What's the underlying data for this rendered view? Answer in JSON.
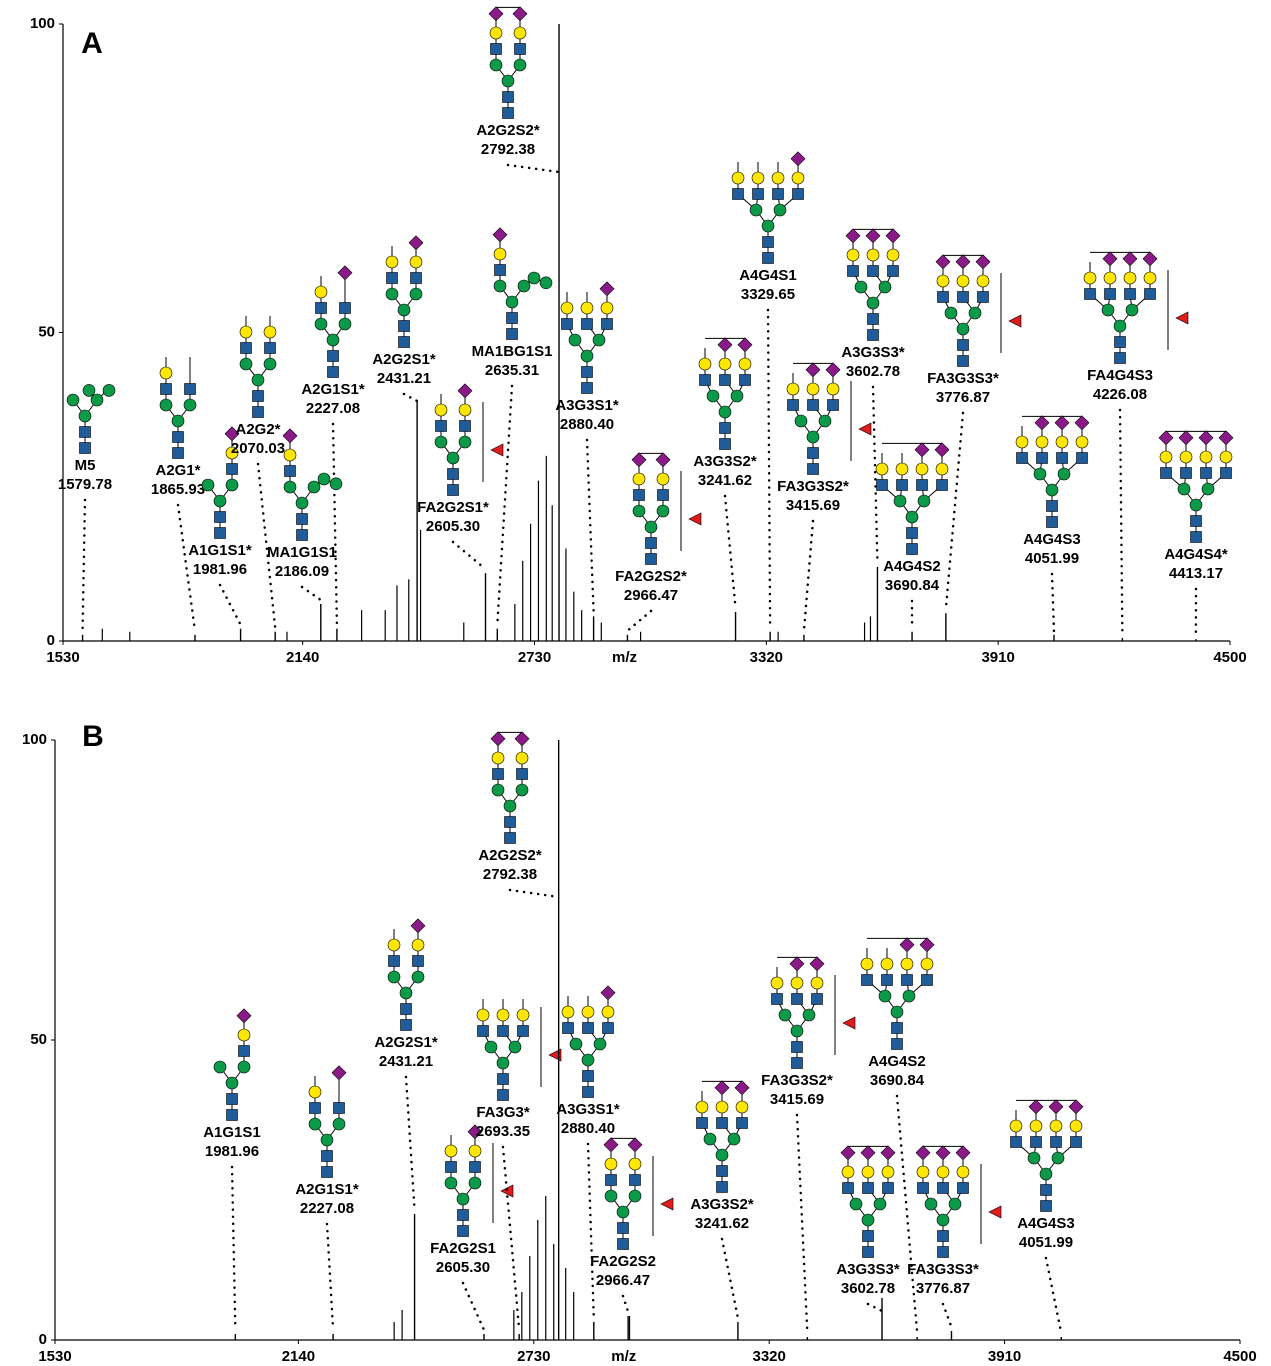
{
  "chart_data": [
    {
      "type": "spectrum",
      "panel_label": "A",
      "x_label": "m/z",
      "color": "#000000",
      "xlim": [
        1530,
        4500
      ],
      "xticks": [
        1530,
        2140,
        2730,
        3320,
        3910,
        4500
      ],
      "ylim": [
        0,
        100
      ],
      "yticks": [
        0,
        50,
        100
      ],
      "annotated_peaks": {
        "names": [
          "M5",
          "A2G1*",
          "A1G1S1*",
          "A2G2*",
          "A2G1S1*",
          "MA1G1S1",
          "A2G2S1*",
          "FA2G2S1*",
          "MA1BG1S1",
          "A2G2S2*",
          "A3G3S1*",
          "FA2G2S2*",
          "A3G3S2*",
          "A4G4S1",
          "FA3G3S2*",
          "A3G3S3*",
          "A4G4S2",
          "FA3G3S3*",
          "A4G4S3",
          "FA4G4S3",
          "A4G4S4*"
        ],
        "x": [
          1579.78,
          1865.93,
          1981.96,
          2070.03,
          2227.08,
          2186.09,
          2431.21,
          2605.3,
          2635.31,
          2792.38,
          2880.4,
          2966.47,
          3241.62,
          3329.65,
          3415.69,
          3602.78,
          3690.84,
          3776.87,
          4051.99,
          4226.08,
          4413.17
        ],
        "x_labels": [
          "1579.78",
          "1865.93",
          "1981.96",
          "2070.03",
          "2227.08",
          "2186.09",
          "2431.21",
          "2605.30",
          "2635.31",
          "2792.38",
          "2880.40",
          "2966.47",
          "3241.62",
          "3329.65",
          "3415.69",
          "3602.78",
          "3690.84",
          "3776.87",
          "4051.99",
          "4226.08",
          "4413.17"
        ],
        "values": [
          1,
          1,
          2,
          1.5,
          2,
          6,
          39,
          11,
          2,
          100,
          4,
          1,
          4.7,
          1.5,
          1,
          12,
          1.5,
          4.5,
          1,
          0.5,
          0.3
        ]
      },
      "other_peaks": {
        "x": [
          1630,
          1700,
          2100,
          2290,
          2350,
          2380,
          2410,
          2440,
          2550,
          2680,
          2700,
          2720,
          2740,
          2760,
          2775,
          2810,
          2830,
          2850,
          2900,
          3000,
          3350,
          3570,
          3585
        ],
        "values": [
          2,
          1.5,
          1.5,
          5,
          5,
          9,
          10,
          18,
          3,
          6,
          13,
          19,
          26,
          30,
          22,
          15,
          8,
          5,
          3,
          1.5,
          1.5,
          3,
          4
        ]
      }
    },
    {
      "type": "spectrum",
      "panel_label": "B",
      "x_label": "m/z",
      "color": "#000000",
      "xlim": [
        1530,
        4500
      ],
      "xticks": [
        1530,
        2140,
        2730,
        3320,
        3910,
        4500
      ],
      "ylim": [
        0,
        100
      ],
      "yticks": [
        0,
        50,
        100
      ],
      "annotated_peaks": {
        "names": [
          "A1G1S1",
          "A2G1S1*",
          "A2G2S1*",
          "FA2G2S1",
          "FA3G3*",
          "A2G2S2*",
          "A3G3S1*",
          "FA2G2S2",
          "A3G3S2*",
          "FA3G3S2*",
          "A4G4S2",
          "A3G3S3*",
          "FA3G3S3*",
          "A4G4S3"
        ],
        "x": [
          1981.96,
          2227.08,
          2431.21,
          2605.3,
          2693.35,
          2792.38,
          2880.4,
          2966.47,
          3241.62,
          3415.69,
          3690.84,
          3602.78,
          3776.87,
          4051.99
        ],
        "x_labels": [
          "1981.96",
          "2227.08",
          "2431.21",
          "2605.30",
          "2693.35",
          "2792.38",
          "2880.40",
          "2966.47",
          "3241.62",
          "3415.69",
          "3690.84",
          "3602.78",
          "3776.87",
          "4051.99"
        ],
        "values": [
          1,
          1,
          21,
          1,
          1,
          100,
          3,
          4,
          3,
          0.5,
          0.5,
          7,
          1.5,
          0.5
        ]
      },
      "other_peaks": {
        "x": [
          2380,
          2400,
          2680,
          2700,
          2720,
          2740,
          2760,
          2780,
          2810,
          2830,
          2970
        ],
        "values": [
          3,
          5,
          5,
          8,
          14,
          20,
          24,
          16,
          12,
          8,
          4
        ]
      }
    }
  ]
}
